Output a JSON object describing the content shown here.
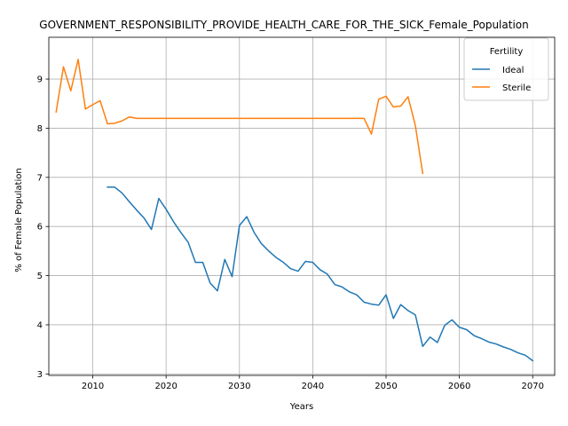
{
  "chart_data": {
    "type": "line",
    "title": "GOVERNMENT_RESPONSIBILITY_PROVIDE_HEALTH_CARE_FOR_THE_SICK_Female_Population",
    "xlabel": "Years",
    "ylabel": "% of Female Population",
    "xlim": [
      2004,
      2073
    ],
    "ylim": [
      2.97,
      9.85
    ],
    "xticks": [
      2010,
      2020,
      2030,
      2040,
      2050,
      2060,
      2070
    ],
    "yticks": [
      3,
      4,
      5,
      6,
      7,
      8,
      9
    ],
    "grid": true,
    "legend": {
      "title": "Fertility",
      "position": "top-right"
    },
    "series": [
      {
        "name": "Ideal",
        "color": "#1f77b4",
        "points": [
          [
            2012,
            6.8
          ],
          [
            2013,
            6.8
          ],
          [
            2014,
            6.68
          ],
          [
            2015,
            6.5
          ],
          [
            2016,
            6.33
          ],
          [
            2017,
            6.17
          ],
          [
            2018,
            5.94
          ],
          [
            2019,
            6.57
          ],
          [
            2020,
            6.35
          ],
          [
            2021,
            6.1
          ],
          [
            2022,
            5.88
          ],
          [
            2023,
            5.68
          ],
          [
            2024,
            5.27
          ],
          [
            2025,
            5.27
          ],
          [
            2026,
            4.85
          ],
          [
            2027,
            4.69
          ],
          [
            2028,
            5.33
          ],
          [
            2029,
            4.98
          ],
          [
            2030,
            6.02
          ],
          [
            2031,
            6.2
          ],
          [
            2032,
            5.88
          ],
          [
            2033,
            5.65
          ],
          [
            2034,
            5.5
          ],
          [
            2035,
            5.37
          ],
          [
            2036,
            5.27
          ],
          [
            2037,
            5.14
          ],
          [
            2038,
            5.09
          ],
          [
            2039,
            5.29
          ],
          [
            2040,
            5.27
          ],
          [
            2041,
            5.12
          ],
          [
            2042,
            5.03
          ],
          [
            2043,
            4.82
          ],
          [
            2044,
            4.77
          ],
          [
            2045,
            4.67
          ],
          [
            2046,
            4.61
          ],
          [
            2047,
            4.46
          ],
          [
            2048,
            4.42
          ],
          [
            2049,
            4.4
          ],
          [
            2050,
            4.61
          ],
          [
            2051,
            4.13
          ],
          [
            2052,
            4.41
          ],
          [
            2053,
            4.29
          ],
          [
            2054,
            4.2
          ],
          [
            2055,
            3.56
          ],
          [
            2056,
            3.75
          ],
          [
            2057,
            3.64
          ],
          [
            2058,
            3.99
          ],
          [
            2059,
            4.1
          ],
          [
            2060,
            3.95
          ],
          [
            2061,
            3.9
          ],
          [
            2062,
            3.78
          ],
          [
            2063,
            3.72
          ],
          [
            2064,
            3.65
          ],
          [
            2065,
            3.61
          ],
          [
            2066,
            3.55
          ],
          [
            2067,
            3.5
          ],
          [
            2068,
            3.43
          ],
          [
            2069,
            3.38
          ],
          [
            2070,
            3.27
          ]
        ]
      },
      {
        "name": "Sterile",
        "color": "#ff7f0e",
        "points": [
          [
            2005,
            8.33
          ],
          [
            2006,
            9.25
          ],
          [
            2007,
            8.76
          ],
          [
            2008,
            9.4
          ],
          [
            2009,
            8.39
          ],
          [
            2010,
            8.48
          ],
          [
            2011,
            8.56
          ],
          [
            2012,
            8.09
          ],
          [
            2013,
            8.1
          ],
          [
            2014,
            8.15
          ],
          [
            2015,
            8.23
          ],
          [
            2016,
            8.2
          ],
          [
            2017,
            8.2
          ],
          [
            2018,
            8.2
          ],
          [
            2019,
            8.2
          ],
          [
            2020,
            8.2
          ],
          [
            2021,
            8.2
          ],
          [
            2022,
            8.2
          ],
          [
            2023,
            8.2
          ],
          [
            2024,
            8.2
          ],
          [
            2025,
            8.2
          ],
          [
            2026,
            8.2
          ],
          [
            2027,
            8.2
          ],
          [
            2028,
            8.2
          ],
          [
            2029,
            8.2
          ],
          [
            2030,
            8.2
          ],
          [
            2031,
            8.2
          ],
          [
            2032,
            8.2
          ],
          [
            2033,
            8.2
          ],
          [
            2034,
            8.2
          ],
          [
            2035,
            8.2
          ],
          [
            2036,
            8.2
          ],
          [
            2037,
            8.2
          ],
          [
            2038,
            8.2
          ],
          [
            2039,
            8.2
          ],
          [
            2040,
            8.2
          ],
          [
            2041,
            8.2
          ],
          [
            2042,
            8.2
          ],
          [
            2043,
            8.2
          ],
          [
            2044,
            8.2
          ],
          [
            2045,
            8.2
          ],
          [
            2046,
            8.2
          ],
          [
            2047,
            8.2
          ],
          [
            2048,
            7.88
          ],
          [
            2049,
            8.59
          ],
          [
            2050,
            8.65
          ],
          [
            2051,
            8.43
          ],
          [
            2052,
            8.45
          ],
          [
            2053,
            8.64
          ],
          [
            2054,
            8.05
          ],
          [
            2055,
            7.08
          ]
        ]
      }
    ]
  }
}
